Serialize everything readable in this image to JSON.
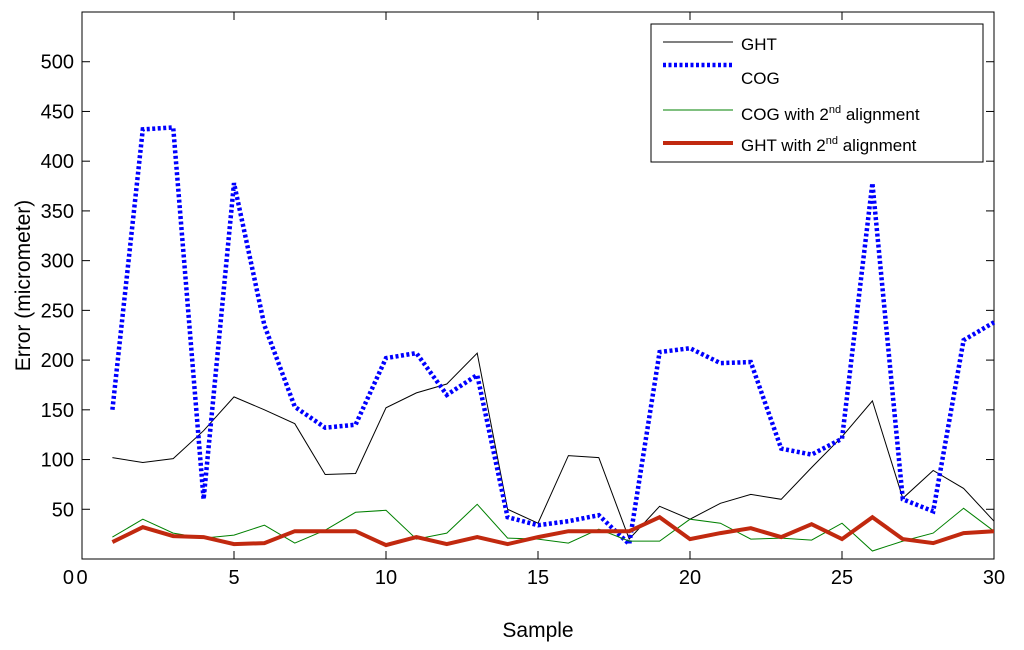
{
  "chart_data": {
    "type": "line",
    "title": "",
    "xlabel": "Sample",
    "ylabel": "Error (micrometer)",
    "xlim": [
      0,
      30
    ],
    "ylim": [
      0,
      550
    ],
    "xticks": [
      0,
      5,
      10,
      15,
      20,
      25,
      30
    ],
    "yticks": [
      0,
      50,
      100,
      150,
      200,
      250,
      300,
      350,
      400,
      450,
      500
    ],
    "grid": false,
    "legend_position": "top-right",
    "x": [
      1,
      2,
      3,
      4,
      5,
      6,
      7,
      8,
      9,
      10,
      11,
      12,
      13,
      14,
      15,
      16,
      17,
      18,
      19,
      20,
      21,
      22,
      23,
      24,
      25,
      26,
      27,
      28,
      29,
      30
    ],
    "series": [
      {
        "name": "GHT",
        "legend_main": "GHT",
        "legend_sup": "",
        "legend_tail": "",
        "color": "#000000",
        "style": "solid",
        "width": "thin",
        "values": [
          102,
          97,
          101,
          129,
          163,
          150,
          136,
          85,
          86,
          152,
          167,
          176,
          207,
          50,
          36,
          104,
          102,
          20,
          53,
          40,
          56,
          65,
          60,
          92,
          123,
          159,
          61,
          89,
          71,
          38
        ]
      },
      {
        "name": "COG",
        "legend_main": "COG",
        "legend_sup": "",
        "legend_tail": "",
        "color": "#0000ff",
        "style": "dotted",
        "width": "thick",
        "values": [
          150,
          432,
          434,
          60,
          378,
          235,
          153,
          132,
          135,
          202,
          207,
          165,
          185,
          42,
          34,
          38,
          44,
          15,
          208,
          212,
          197,
          198,
          111,
          105,
          121,
          378,
          60,
          48,
          220,
          238
        ]
      },
      {
        "name": "COG with 2nd alignment",
        "legend_main": "COG with 2",
        "legend_sup": "nd",
        "legend_tail": " alignment",
        "color": "#008000",
        "style": "solid",
        "width": "thin",
        "values": [
          22,
          40,
          26,
          21,
          24,
          34,
          16,
          29,
          47,
          49,
          20,
          26,
          55,
          21,
          20,
          16,
          30,
          18,
          18,
          40,
          36,
          20,
          21,
          19,
          36,
          8,
          18,
          26,
          51,
          28
        ]
      },
      {
        "name": "GHT with 2nd alignment",
        "legend_main": "GHT with 2",
        "legend_sup": "nd",
        "legend_tail": " alignment",
        "color": "#c1290f",
        "style": "solid",
        "width": "bold",
        "values": [
          17,
          32,
          23,
          22,
          15,
          16,
          28,
          28,
          28,
          14,
          22,
          15,
          22,
          15,
          22,
          28,
          28,
          28,
          42,
          20,
          26,
          31,
          22,
          35,
          20,
          42,
          20,
          16,
          26,
          28
        ]
      }
    ]
  }
}
